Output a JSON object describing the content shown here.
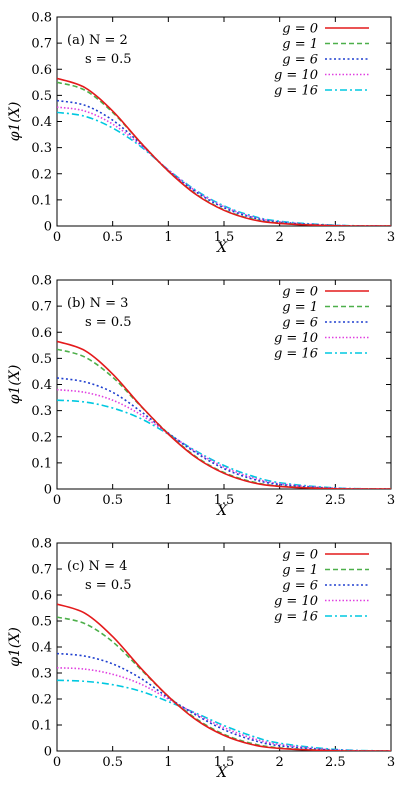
{
  "chart_data": [
    {
      "type": "line",
      "annotation": "(a) N = 2",
      "annotation2": "s = 0.5",
      "xlabel": "X",
      "ylabel": "φ1(X)",
      "xlim": [
        0,
        3
      ],
      "ylim": [
        0,
        0.8
      ],
      "xticks": [
        "0",
        "0.5",
        "1",
        "1.5",
        "2",
        "2.5",
        "3"
      ],
      "yticks": [
        "0",
        "0.1",
        "0.2",
        "0.3",
        "0.4",
        "0.5",
        "0.6",
        "0.7",
        "0.8"
      ],
      "legend_position": "top-right",
      "x": [
        0,
        0.25,
        0.5,
        0.75,
        1,
        1.25,
        1.5,
        1.75,
        2,
        2.5,
        3
      ],
      "series": [
        {
          "name": "g = 0",
          "color": "#e41a1c",
          "dash": "solid",
          "values": [
            0.565,
            0.53,
            0.44,
            0.32,
            0.21,
            0.12,
            0.06,
            0.025,
            0.01,
            0.001,
            0.0
          ]
        },
        {
          "name": "g = 1",
          "color": "#4daf4a",
          "dash": "dashed",
          "values": [
            0.55,
            0.52,
            0.435,
            0.32,
            0.21,
            0.122,
            0.062,
            0.027,
            0.011,
            0.001,
            0.0
          ]
        },
        {
          "name": "g = 6",
          "color": "#1f3fcf",
          "dash": "dotted",
          "values": [
            0.48,
            0.462,
            0.405,
            0.315,
            0.212,
            0.13,
            0.07,
            0.033,
            0.014,
            0.002,
            0.0
          ]
        },
        {
          "name": "g = 10",
          "color": "#e040e0",
          "dash": "dotted2",
          "values": [
            0.455,
            0.44,
            0.39,
            0.31,
            0.215,
            0.133,
            0.074,
            0.036,
            0.016,
            0.002,
            0.0
          ]
        },
        {
          "name": "g = 16",
          "color": "#00c8e0",
          "dash": "dashdot",
          "values": [
            0.435,
            0.42,
            0.375,
            0.305,
            0.215,
            0.136,
            0.077,
            0.039,
            0.018,
            0.003,
            0.0
          ]
        }
      ]
    },
    {
      "type": "line",
      "annotation": "(b) N = 3",
      "annotation2": "s = 0.5",
      "xlabel": "X",
      "ylabel": "φ1(X)",
      "xlim": [
        0,
        3
      ],
      "ylim": [
        0,
        0.8
      ],
      "xticks": [
        "0",
        "0.5",
        "1",
        "1.5",
        "2",
        "2.5",
        "3"
      ],
      "yticks": [
        "0",
        "0.1",
        "0.2",
        "0.3",
        "0.4",
        "0.5",
        "0.6",
        "0.7",
        "0.8"
      ],
      "legend_position": "top-right",
      "x": [
        0,
        0.25,
        0.5,
        0.75,
        1,
        1.25,
        1.5,
        1.75,
        2,
        2.5,
        3
      ],
      "series": [
        {
          "name": "g = 0",
          "color": "#e41a1c",
          "dash": "solid",
          "values": [
            0.565,
            0.53,
            0.44,
            0.32,
            0.21,
            0.12,
            0.06,
            0.025,
            0.01,
            0.001,
            0.0
          ]
        },
        {
          "name": "g = 1",
          "color": "#4daf4a",
          "dash": "dashed",
          "values": [
            0.535,
            0.505,
            0.428,
            0.318,
            0.212,
            0.123,
            0.063,
            0.028,
            0.011,
            0.001,
            0.0
          ]
        },
        {
          "name": "g = 6",
          "color": "#1f3fcf",
          "dash": "dotted",
          "values": [
            0.425,
            0.41,
            0.37,
            0.298,
            0.214,
            0.138,
            0.078,
            0.039,
            0.017,
            0.002,
            0.0
          ]
        },
        {
          "name": "g = 10",
          "color": "#e040e0",
          "dash": "dotted2",
          "values": [
            0.38,
            0.37,
            0.34,
            0.285,
            0.212,
            0.142,
            0.084,
            0.044,
            0.02,
            0.003,
            0.0
          ]
        },
        {
          "name": "g = 16",
          "color": "#00c8e0",
          "dash": "dashdot",
          "values": [
            0.34,
            0.333,
            0.31,
            0.27,
            0.21,
            0.145,
            0.09,
            0.05,
            0.024,
            0.004,
            0.0
          ]
        }
      ]
    },
    {
      "type": "line",
      "annotation": "(c) N = 4",
      "annotation2": "s = 0.5",
      "xlabel": "X",
      "ylabel": "φ1(X)",
      "xlim": [
        0,
        3
      ],
      "ylim": [
        0,
        0.8
      ],
      "xticks": [
        "0",
        "0.5",
        "1",
        "1.5",
        "2",
        "2.5",
        "3"
      ],
      "yticks": [
        "0",
        "0.1",
        "0.2",
        "0.3",
        "0.4",
        "0.5",
        "0.6",
        "0.7",
        "0.8"
      ],
      "legend_position": "top-right",
      "x": [
        0,
        0.25,
        0.5,
        0.75,
        1,
        1.25,
        1.5,
        1.75,
        2,
        2.5,
        3
      ],
      "series": [
        {
          "name": "g = 0",
          "color": "#e41a1c",
          "dash": "solid",
          "values": [
            0.565,
            0.53,
            0.44,
            0.32,
            0.21,
            0.12,
            0.06,
            0.025,
            0.01,
            0.001,
            0.0
          ]
        },
        {
          "name": "g = 1",
          "color": "#4daf4a",
          "dash": "dashed",
          "values": [
            0.515,
            0.49,
            0.42,
            0.315,
            0.21,
            0.124,
            0.064,
            0.029,
            0.012,
            0.001,
            0.0
          ]
        },
        {
          "name": "g = 6",
          "color": "#1f3fcf",
          "dash": "dotted",
          "values": [
            0.375,
            0.365,
            0.335,
            0.28,
            0.205,
            0.138,
            0.082,
            0.043,
            0.02,
            0.003,
            0.0
          ]
        },
        {
          "name": "g = 10",
          "color": "#e040e0",
          "dash": "dotted2",
          "values": [
            0.32,
            0.315,
            0.295,
            0.258,
            0.2,
            0.142,
            0.09,
            0.05,
            0.025,
            0.004,
            0.0
          ]
        },
        {
          "name": "g = 16",
          "color": "#00c8e0",
          "dash": "dashdot",
          "values": [
            0.272,
            0.268,
            0.255,
            0.23,
            0.19,
            0.145,
            0.098,
            0.058,
            0.03,
            0.006,
            0.0
          ]
        }
      ]
    }
  ]
}
